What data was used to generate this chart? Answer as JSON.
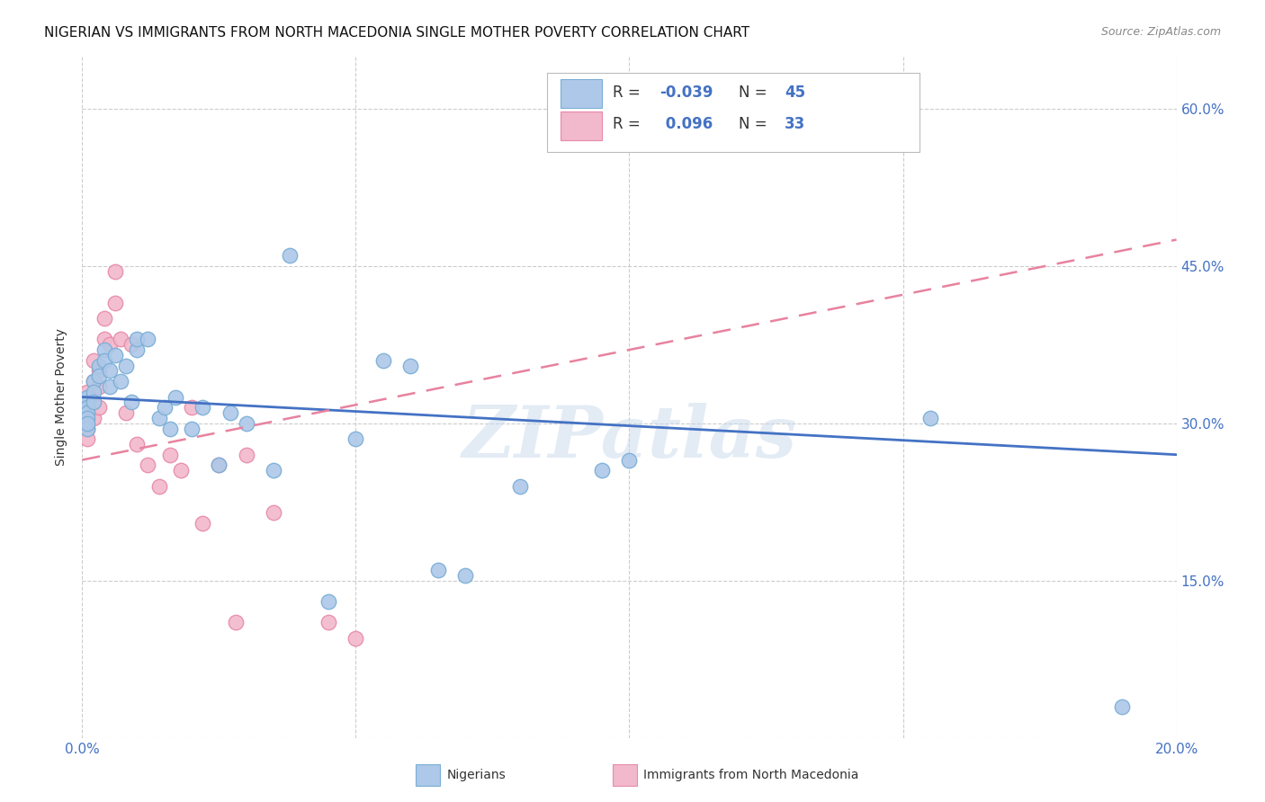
{
  "title": "NIGERIAN VS IMMIGRANTS FROM NORTH MACEDONIA SINGLE MOTHER POVERTY CORRELATION CHART",
  "source": "Source: ZipAtlas.com",
  "ylabel": "Single Mother Poverty",
  "watermark": "ZIPatlas",
  "xlim": [
    0.0,
    0.2
  ],
  "ylim": [
    0.0,
    0.65
  ],
  "xticks": [
    0.0,
    0.05,
    0.1,
    0.15,
    0.2
  ],
  "xticklabels": [
    "0.0%",
    "",
    "",
    "",
    "20.0%"
  ],
  "yticks": [
    0.0,
    0.15,
    0.3,
    0.45,
    0.6
  ],
  "right_yticklabels": [
    "",
    "15.0%",
    "30.0%",
    "45.0%",
    "60.0%"
  ],
  "nigerians_color": "#adc8e8",
  "nigerians_edge": "#7aaed6",
  "macedonia_color": "#f2b8cb",
  "macedonia_edge": "#e88aaa",
  "trend_nigeria_color": "#4472c4",
  "trend_macedonia_color": "#e8829e",
  "R_nigeria": -0.039,
  "N_nigeria": 45,
  "R_macedonia": 0.096,
  "N_macedonia": 33,
  "nig_trend_x0": 0.0,
  "nig_trend_y0": 0.325,
  "nig_trend_x1": 0.2,
  "nig_trend_y1": 0.27,
  "mac_trend_x0": 0.0,
  "mac_trend_y0": 0.265,
  "mac_trend_x1": 0.2,
  "mac_trend_y1": 0.475,
  "nigerians_x": [
    0.001,
    0.001,
    0.001,
    0.001,
    0.001,
    0.001,
    0.001,
    0.002,
    0.002,
    0.002,
    0.003,
    0.003,
    0.004,
    0.004,
    0.005,
    0.005,
    0.006,
    0.007,
    0.008,
    0.009,
    0.01,
    0.01,
    0.012,
    0.014,
    0.015,
    0.016,
    0.017,
    0.02,
    0.022,
    0.025,
    0.027,
    0.03,
    0.035,
    0.038,
    0.045,
    0.05,
    0.055,
    0.06,
    0.065,
    0.07,
    0.08,
    0.095,
    0.1,
    0.155,
    0.19
  ],
  "nigerians_y": [
    0.32,
    0.325,
    0.315,
    0.31,
    0.305,
    0.295,
    0.3,
    0.34,
    0.33,
    0.32,
    0.355,
    0.345,
    0.37,
    0.36,
    0.35,
    0.335,
    0.365,
    0.34,
    0.355,
    0.32,
    0.37,
    0.38,
    0.38,
    0.305,
    0.315,
    0.295,
    0.325,
    0.295,
    0.315,
    0.26,
    0.31,
    0.3,
    0.255,
    0.46,
    0.13,
    0.285,
    0.36,
    0.355,
    0.16,
    0.155,
    0.24,
    0.255,
    0.265,
    0.305,
    0.03
  ],
  "macedonia_x": [
    0.001,
    0.001,
    0.001,
    0.001,
    0.001,
    0.002,
    0.002,
    0.002,
    0.002,
    0.003,
    0.003,
    0.003,
    0.004,
    0.004,
    0.005,
    0.006,
    0.006,
    0.007,
    0.008,
    0.009,
    0.01,
    0.012,
    0.014,
    0.016,
    0.018,
    0.02,
    0.022,
    0.025,
    0.028,
    0.03,
    0.035,
    0.045,
    0.05
  ],
  "macedonia_y": [
    0.33,
    0.32,
    0.305,
    0.295,
    0.285,
    0.36,
    0.34,
    0.32,
    0.305,
    0.35,
    0.335,
    0.315,
    0.38,
    0.4,
    0.375,
    0.415,
    0.445,
    0.38,
    0.31,
    0.375,
    0.28,
    0.26,
    0.24,
    0.27,
    0.255,
    0.315,
    0.205,
    0.26,
    0.11,
    0.27,
    0.215,
    0.11,
    0.095
  ],
  "grid_color": "#cccccc",
  "background_color": "#ffffff",
  "title_fontsize": 11,
  "axis_label_fontsize": 10,
  "tick_fontsize": 11,
  "legend_fontsize": 12
}
